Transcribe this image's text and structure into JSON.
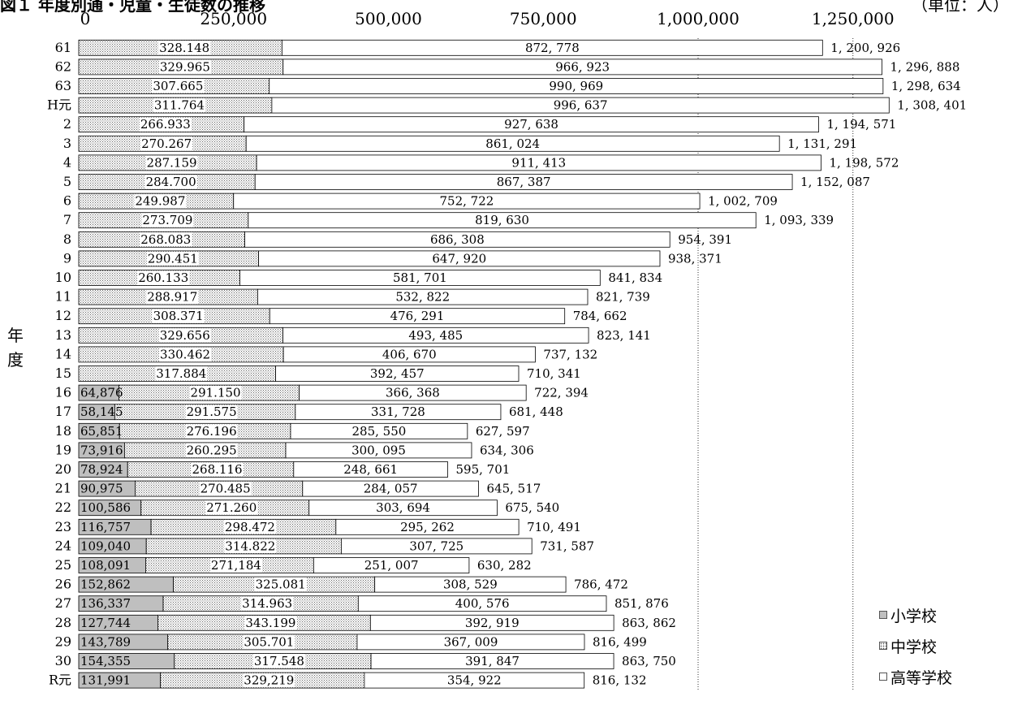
{
  "title": "図１ 年度別通・児童・生徒数の推移",
  "unit_label": "（単位：人）",
  "y_axis_label": "年度",
  "legend": {
    "elementary": "小学校",
    "junior_high": "中学校",
    "high_school": "高等学校"
  },
  "colors": {
    "elementary": "#bfbfbf",
    "junior_high_pattern": "#666666",
    "high_school": "#ffffff",
    "bar_border": "#000000",
    "gridline": "#333333"
  },
  "chart_data": {
    "type": "bar",
    "orientation": "horizontal",
    "stacked": true,
    "title": "図１ 年度別通・児童・生徒数の推移",
    "xlim": [
      0,
      1250000
    ],
    "x_ticks": [
      0,
      250000,
      500000,
      750000,
      1000000,
      1250000
    ],
    "x_tick_labels": [
      "0",
      "250,000",
      "500,000",
      "750,000",
      "1,000,000",
      "1,250,000"
    ],
    "gridlines_at": [
      1000000,
      1250000
    ],
    "ylabel": "年度",
    "legend_position": "bottom-right",
    "categories": [
      "61",
      "62",
      "63",
      "H元",
      "2",
      "3",
      "4",
      "5",
      "6",
      "7",
      "8",
      "9",
      "10",
      "11",
      "12",
      "13",
      "14",
      "15",
      "16",
      "17",
      "18",
      "19",
      "20",
      "21",
      "22",
      "23",
      "24",
      "25",
      "26",
      "27",
      "28",
      "29",
      "30",
      "R元"
    ],
    "series": [
      {
        "name": "小学校",
        "values": [
          null,
          null,
          null,
          null,
          null,
          null,
          null,
          null,
          null,
          null,
          null,
          null,
          null,
          null,
          null,
          null,
          null,
          null,
          64876,
          58145,
          65851,
          73916,
          78924,
          90975,
          100586,
          116757,
          109040,
          108091,
          152862,
          136337,
          127744,
          143789,
          154355,
          131991
        ],
        "labels": [
          "",
          "",
          "",
          "",
          "",
          "",
          "",
          "",
          "",
          "",
          "",
          "",
          "",
          "",
          "",
          "",
          "",
          "",
          "64,876",
          "58,145",
          "65,851",
          "73,916",
          "78,924",
          "90,975",
          "100,586",
          "116,757",
          "109,040",
          "108,091",
          "152,862",
          "136,337",
          "127,744",
          "143,789",
          "154,355",
          "131,991"
        ]
      },
      {
        "name": "中学校",
        "values": [
          328148,
          329965,
          307665,
          311764,
          266933,
          270267,
          287159,
          284700,
          249987,
          273709,
          268083,
          290451,
          260133,
          288917,
          308371,
          329656,
          330462,
          317884,
          291150,
          291575,
          276196,
          260295,
          268116,
          270485,
          271260,
          298472,
          314822,
          271184,
          325081,
          314963,
          343199,
          305701,
          317548,
          329219
        ],
        "labels": [
          "328.148",
          "329.965",
          "307.665",
          "311.764",
          "266.933",
          "270.267",
          "287.159",
          "284.700",
          "249.987",
          "273.709",
          "268.083",
          "290.451",
          "260.133",
          "288.917",
          "308.371",
          "329.656",
          "330.462",
          "317.884",
          "291.150",
          "291.575",
          "276.196",
          "260.295",
          "268.116",
          "270.485",
          "271.260",
          "298.472",
          "314.822",
          "271,184",
          "325.081",
          "314.963",
          "343.199",
          "305.701",
          "317.548",
          "329,219"
        ]
      },
      {
        "name": "高等学校",
        "values": [
          872778,
          966923,
          990969,
          996637,
          927638,
          861024,
          911413,
          867387,
          752722,
          819630,
          686308,
          647920,
          581701,
          532822,
          476291,
          493485,
          406670,
          392457,
          366368,
          331728,
          285550,
          300095,
          248661,
          284057,
          303694,
          295262,
          307725,
          251007,
          308529,
          400576,
          392919,
          367009,
          391847,
          354922
        ],
        "labels": [
          "872, 778",
          "966, 923",
          "990, 969",
          "996, 637",
          "927, 638",
          "861, 024",
          "911, 413",
          "867, 387",
          "752, 722",
          "819, 630",
          "686, 308",
          "647, 920",
          "581, 701",
          "532, 822",
          "476, 291",
          "493, 485",
          "406, 670",
          "392, 457",
          "366, 368",
          "331, 728",
          "285, 550",
          "300, 095",
          "248, 661",
          "284, 057",
          "303, 694",
          "295, 262",
          "307, 725",
          "251, 007",
          "308, 529",
          "400, 576",
          "392, 919",
          "367, 009",
          "391, 847",
          "354, 922"
        ]
      }
    ],
    "totals": [
      1200926,
      1296888,
      1298634,
      1308401,
      1194571,
      1131291,
      1198572,
      1152087,
      1002709,
      1093339,
      954391,
      938371,
      841834,
      821739,
      784662,
      823141,
      737132,
      710341,
      722394,
      681448,
      627597,
      634306,
      595701,
      645517,
      675540,
      710491,
      731587,
      630282,
      786472,
      851876,
      863862,
      816499,
      863750,
      816132
    ],
    "total_labels": [
      "1, 200, 926",
      "1, 296, 888",
      "1, 298, 634",
      "1, 308, 401",
      "1, 194, 571",
      "1, 131, 291",
      "1, 198, 572",
      "1, 152, 087",
      "1, 002, 709",
      "1, 093, 339",
      "954, 391",
      "938, 371",
      "841, 834",
      "821, 739",
      "784, 662",
      "823, 141",
      "737, 132",
      "710, 341",
      "722, 394",
      "681, 448",
      "627, 597",
      "634, 306",
      "595, 701",
      "645, 517",
      "675, 540",
      "710, 491",
      "731, 587",
      "630, 282",
      "786, 472",
      "851, 876",
      "863, 862",
      "816, 499",
      "863, 750",
      "816, 132"
    ]
  }
}
